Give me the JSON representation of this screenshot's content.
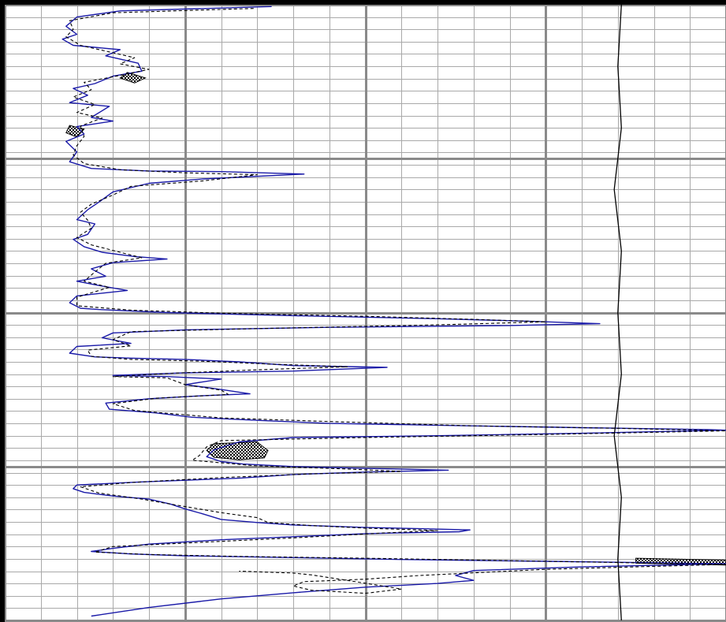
{
  "colors": {
    "background": "#ffffff",
    "minor_grid": "#a9a9a9",
    "major_grid": "#8a8a8a",
    "frame": "#000000",
    "curve_primary": "#1a1aa8",
    "curve_secondary": "#000000",
    "crossover_fill": "checker-black"
  },
  "chart_data": {
    "type": "line",
    "title": "",
    "xlabel": "",
    "ylabel": "",
    "grid": true,
    "xlim": [
      0,
      20
    ],
    "ylim": [
      0,
      100
    ],
    "y_inverted": true,
    "series": [
      {
        "style": "solid-blue",
        "points": [
          [
            7.4,
            0.3
          ],
          [
            3.2,
            1.0
          ],
          [
            2.0,
            2.0
          ],
          [
            1.7,
            3.5
          ],
          [
            2.0,
            4.8
          ],
          [
            1.6,
            5.6
          ],
          [
            1.9,
            6.6
          ],
          [
            3.2,
            7.3
          ],
          [
            2.8,
            8.3
          ],
          [
            3.7,
            9.5
          ],
          [
            3.8,
            10.8
          ],
          [
            3.0,
            11.6
          ],
          [
            2.5,
            12.8
          ],
          [
            1.9,
            13.6
          ],
          [
            2.3,
            14.7
          ],
          [
            1.8,
            15.9
          ],
          [
            2.9,
            16.5
          ],
          [
            2.4,
            18.3
          ],
          [
            3.0,
            18.9
          ],
          [
            2.0,
            19.8
          ],
          [
            2.2,
            21.0
          ],
          [
            1.7,
            22.2
          ],
          [
            2.0,
            23.9
          ],
          [
            1.8,
            25.5
          ],
          [
            2.4,
            26.6
          ],
          [
            4.0,
            27.0
          ],
          [
            6.0,
            27.1
          ],
          [
            8.3,
            27.5
          ],
          [
            5.5,
            28.3
          ],
          [
            4.0,
            29.0
          ],
          [
            3.0,
            30.4
          ],
          [
            2.6,
            32.1
          ],
          [
            2.3,
            33.3
          ],
          [
            2.0,
            34.9
          ],
          [
            2.5,
            35.6
          ],
          [
            2.3,
            37.3
          ],
          [
            1.9,
            38.1
          ],
          [
            2.2,
            39.3
          ],
          [
            2.7,
            40.2
          ],
          [
            3.6,
            40.9
          ],
          [
            4.5,
            41.3
          ],
          [
            3.0,
            41.9
          ],
          [
            2.4,
            42.9
          ],
          [
            2.8,
            44.1
          ],
          [
            2.0,
            44.9
          ],
          [
            2.6,
            45.6
          ],
          [
            3.4,
            46.4
          ],
          [
            2.0,
            47.3
          ],
          [
            1.8,
            48.4
          ],
          [
            2.1,
            49.3
          ],
          [
            2.6,
            49.5
          ],
          [
            4.5,
            50.0
          ],
          [
            8.0,
            50.5
          ],
          [
            12.0,
            51.0
          ],
          [
            14.5,
            51.4
          ],
          [
            16.5,
            51.8
          ],
          [
            14.0,
            52.1
          ],
          [
            9.0,
            52.4
          ],
          [
            5.0,
            52.8
          ],
          [
            3.0,
            53.3
          ],
          [
            2.7,
            54.1
          ],
          [
            3.5,
            55.0
          ],
          [
            2.0,
            55.5
          ],
          [
            1.8,
            56.6
          ],
          [
            2.5,
            57.2
          ],
          [
            3.5,
            57.4
          ],
          [
            5.0,
            57.6
          ],
          [
            6.5,
            58.0
          ],
          [
            8.0,
            58.6
          ],
          [
            10.6,
            58.9
          ],
          [
            8.0,
            59.5
          ],
          [
            5.0,
            59.8
          ],
          [
            3.0,
            60.2
          ],
          [
            4.5,
            60.4
          ],
          [
            6.0,
            60.8
          ],
          [
            5.0,
            61.7
          ],
          [
            6.0,
            62.5
          ],
          [
            6.8,
            63.2
          ],
          [
            5.5,
            63.5
          ],
          [
            4.0,
            64.0
          ],
          [
            2.8,
            64.7
          ],
          [
            2.9,
            65.7
          ],
          [
            4.2,
            66.3
          ],
          [
            5.2,
            67.0
          ],
          [
            7.0,
            67.5
          ],
          [
            9.0,
            68.0
          ],
          [
            12.0,
            68.3
          ],
          [
            16.0,
            68.7
          ],
          [
            19.5,
            69.0
          ],
          [
            20.0,
            69.1
          ],
          [
            16.0,
            69.6
          ],
          [
            12.0,
            70.0
          ],
          [
            8.0,
            70.3
          ],
          [
            6.5,
            71.0
          ],
          [
            5.8,
            72.3
          ],
          [
            5.6,
            73.4
          ],
          [
            6.0,
            74.2
          ],
          [
            6.6,
            74.6
          ],
          [
            8.0,
            75.0
          ],
          [
            10.0,
            75.3
          ],
          [
            12.3,
            75.6
          ],
          [
            10.0,
            75.9
          ],
          [
            8.0,
            76.3
          ],
          [
            6.5,
            76.9
          ],
          [
            3.8,
            77.5
          ],
          [
            2.0,
            78.0
          ],
          [
            1.9,
            78.6
          ],
          [
            2.2,
            79.2
          ],
          [
            3.0,
            79.8
          ],
          [
            4.0,
            80.3
          ],
          [
            4.6,
            81.1
          ],
          [
            5.0,
            81.9
          ],
          [
            5.5,
            82.7
          ],
          [
            6.0,
            83.6
          ],
          [
            7.0,
            84.1
          ],
          [
            8.0,
            84.5
          ],
          [
            10.0,
            84.9
          ],
          [
            11.5,
            85.1
          ],
          [
            12.9,
            85.3
          ],
          [
            12.6,
            85.6
          ],
          [
            10.0,
            85.9
          ],
          [
            8.0,
            86.4
          ],
          [
            6.0,
            86.9
          ],
          [
            4.0,
            87.6
          ],
          [
            3.0,
            88.3
          ],
          [
            2.4,
            88.8
          ],
          [
            3.5,
            89.2
          ],
          [
            5.0,
            89.5
          ],
          [
            8.0,
            89.8
          ],
          [
            11.0,
            90.1
          ],
          [
            15.0,
            90.4
          ],
          [
            20.0,
            90.8
          ],
          [
            16.0,
            91.3
          ],
          [
            13.0,
            91.9
          ],
          [
            12.5,
            92.7
          ],
          [
            13.0,
            93.5
          ],
          [
            12.0,
            94.0
          ],
          [
            10.0,
            94.6
          ],
          [
            8.0,
            95.5
          ],
          [
            6.0,
            96.5
          ],
          [
            4.0,
            97.9
          ],
          [
            2.4,
            99.3
          ]
        ]
      },
      {
        "style": "dashed-black",
        "points": [
          [
            6.9,
            0.6
          ],
          [
            3.0,
            1.3
          ],
          [
            1.8,
            2.6
          ],
          [
            1.9,
            4.0
          ],
          [
            1.7,
            5.2
          ],
          [
            2.1,
            6.6
          ],
          [
            3.0,
            7.8
          ],
          [
            3.6,
            8.6
          ],
          [
            3.2,
            9.6
          ],
          [
            4.0,
            10.5
          ],
          [
            3.0,
            11.7
          ],
          [
            2.2,
            12.6
          ],
          [
            2.4,
            13.8
          ],
          [
            1.9,
            15.0
          ],
          [
            2.5,
            16.2
          ],
          [
            2.0,
            17.5
          ],
          [
            2.7,
            18.4
          ],
          [
            2.1,
            19.7
          ],
          [
            2.2,
            21.4
          ],
          [
            2.0,
            22.9
          ],
          [
            1.9,
            24.4
          ],
          [
            2.2,
            25.8
          ],
          [
            3.2,
            26.8
          ],
          [
            5.0,
            27.3
          ],
          [
            7.0,
            27.6
          ],
          [
            5.5,
            28.6
          ],
          [
            3.5,
            29.5
          ],
          [
            3.0,
            30.9
          ],
          [
            2.4,
            32.4
          ],
          [
            2.1,
            33.7
          ],
          [
            2.3,
            35.0
          ],
          [
            2.4,
            36.3
          ],
          [
            2.0,
            37.8
          ],
          [
            2.4,
            39.0
          ],
          [
            3.2,
            40.2
          ],
          [
            3.8,
            41.1
          ],
          [
            2.8,
            42.0
          ],
          [
            2.5,
            43.4
          ],
          [
            2.2,
            44.9
          ],
          [
            2.9,
            45.9
          ],
          [
            2.0,
            47.5
          ],
          [
            2.0,
            48.9
          ],
          [
            3.5,
            49.6
          ],
          [
            6.0,
            50.1
          ],
          [
            10.0,
            50.6
          ],
          [
            13.0,
            51.1
          ],
          [
            15.0,
            51.5
          ],
          [
            12.0,
            52.0
          ],
          [
            7.0,
            52.6
          ],
          [
            3.5,
            53.1
          ],
          [
            3.0,
            54.4
          ],
          [
            3.5,
            55.4
          ],
          [
            2.3,
            56.1
          ],
          [
            2.4,
            57.1
          ],
          [
            3.5,
            57.6
          ],
          [
            5.5,
            57.9
          ],
          [
            7.5,
            58.4
          ],
          [
            9.5,
            58.8
          ],
          [
            7.0,
            59.3
          ],
          [
            4.5,
            59.9
          ],
          [
            3.0,
            60.4
          ],
          [
            4.5,
            60.6
          ],
          [
            5.0,
            61.7
          ],
          [
            6.0,
            62.6
          ],
          [
            6.2,
            63.3
          ],
          [
            4.2,
            63.9
          ],
          [
            3.0,
            64.8
          ],
          [
            3.6,
            65.9
          ],
          [
            4.6,
            66.4
          ],
          [
            6.0,
            67.1
          ],
          [
            9.0,
            67.7
          ],
          [
            13.0,
            68.4
          ],
          [
            17.0,
            68.8
          ],
          [
            20.0,
            69.2
          ],
          [
            15.0,
            69.8
          ],
          [
            10.0,
            70.3
          ],
          [
            6.0,
            70.8
          ],
          [
            5.6,
            71.8
          ],
          [
            5.4,
            73.2
          ],
          [
            5.2,
            74.0
          ],
          [
            7.0,
            74.9
          ],
          [
            9.5,
            75.4
          ],
          [
            11.0,
            75.8
          ],
          [
            8.5,
            76.2
          ],
          [
            6.0,
            76.8
          ],
          [
            3.5,
            77.6
          ],
          [
            2.1,
            78.3
          ],
          [
            2.6,
            79.3
          ],
          [
            3.8,
            80.3
          ],
          [
            4.8,
            81.3
          ],
          [
            6.0,
            82.5
          ],
          [
            7.0,
            83.3
          ],
          [
            7.3,
            84.1
          ],
          [
            8.5,
            84.6
          ],
          [
            10.0,
            85.0
          ],
          [
            12.0,
            85.4
          ],
          [
            10.5,
            85.8
          ],
          [
            8.0,
            86.6
          ],
          [
            5.5,
            87.3
          ],
          [
            3.0,
            88.0
          ],
          [
            2.5,
            88.9
          ],
          [
            4.0,
            89.3
          ],
          [
            6.5,
            89.6
          ],
          [
            10.0,
            89.9
          ],
          [
            14.0,
            90.3
          ],
          [
            20.0,
            90.9
          ],
          [
            15.0,
            91.7
          ],
          [
            11.5,
            92.7
          ],
          [
            10.0,
            93.3
          ],
          [
            8.3,
            93.7
          ],
          [
            8.0,
            94.4
          ],
          [
            8.5,
            95.1
          ],
          [
            10.0,
            95.6
          ],
          [
            11.0,
            94.9
          ],
          [
            9.5,
            93.5
          ],
          [
            8.5,
            92.6
          ],
          [
            8.0,
            92.3
          ],
          [
            7.0,
            92.1
          ],
          [
            6.5,
            92.0
          ]
        ]
      },
      {
        "style": "reference-black",
        "points": [
          [
            17.1,
            0
          ],
          [
            17.0,
            10
          ],
          [
            17.1,
            20
          ],
          [
            16.9,
            30
          ],
          [
            17.1,
            40
          ],
          [
            17.0,
            50
          ],
          [
            17.1,
            60
          ],
          [
            16.9,
            70
          ],
          [
            17.1,
            80
          ],
          [
            17.0,
            90
          ],
          [
            17.1,
            100
          ]
        ]
      }
    ],
    "crossover_fills": [
      {
        "points": [
          [
            7.0,
            71.0
          ],
          [
            5.8,
            71.3
          ],
          [
            5.6,
            72.4
          ],
          [
            5.8,
            73.5
          ],
          [
            6.5,
            73.9
          ],
          [
            7.2,
            73.6
          ],
          [
            7.3,
            72.4
          ],
          [
            7.1,
            71.5
          ]
        ]
      },
      {
        "points": [
          [
            3.4,
            11.0
          ],
          [
            3.9,
            11.9
          ],
          [
            3.6,
            12.7
          ],
          [
            3.2,
            11.9
          ]
        ]
      },
      {
        "points": [
          [
            1.8,
            19.6
          ],
          [
            2.2,
            20.2
          ],
          [
            2.0,
            21.5
          ],
          [
            1.7,
            20.8
          ]
        ]
      },
      {
        "points": [
          [
            17.5,
            89.9
          ],
          [
            20.0,
            90.2
          ],
          [
            20.0,
            91.0
          ],
          [
            17.5,
            90.7
          ]
        ]
      }
    ]
  }
}
